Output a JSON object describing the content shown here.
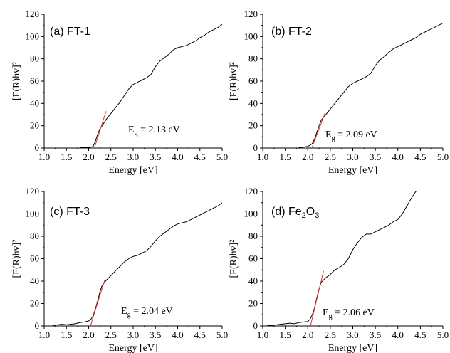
{
  "colors": {
    "data": "#000000",
    "fit": "#e8322b",
    "axis": "#000000"
  },
  "chart_data": [
    {
      "type": "line",
      "title": "(a) FT-1",
      "title_parts": {
        "main": "(a) FT-1",
        "sub": "",
        "tail": ""
      },
      "xlabel": "Energy [eV]",
      "ylabel": "[F(R)hv]²",
      "xlim": [
        1.0,
        5.0
      ],
      "ylim": [
        0,
        120
      ],
      "xticks": [
        "1.0",
        "1.5",
        "2.0",
        "2.5",
        "3.0",
        "3.5",
        "4.0",
        "4.5",
        "5.0"
      ],
      "yticks": [
        "0",
        "20",
        "40",
        "60",
        "80",
        "100",
        "120"
      ],
      "annotation": {
        "main": "E",
        "sub": "g",
        "rest": " = 2.13 eV"
      },
      "series": [
        {
          "x": [
            1.8,
            1.9,
            2.0,
            2.05,
            2.1,
            2.15,
            2.2,
            2.25,
            2.3,
            2.4,
            2.5,
            2.6,
            2.7,
            2.8,
            2.9,
            3.0,
            3.1,
            3.2,
            3.3,
            3.4,
            3.5,
            3.6,
            3.7,
            3.8,
            3.9,
            4.0,
            4.1,
            4.2,
            4.3,
            4.4,
            4.5,
            4.6,
            4.7,
            4.8,
            4.9,
            5.0
          ],
          "y": [
            0.5,
            0.5,
            0.6,
            0.8,
            1.5,
            6,
            12,
            17,
            20,
            26,
            31,
            36,
            41,
            47,
            53,
            57,
            59,
            61,
            63,
            66,
            73,
            78,
            81,
            84,
            88,
            90,
            91,
            92,
            94,
            96,
            99,
            101,
            104,
            106,
            108,
            111
          ]
        },
        {
          "x": [
            2.13,
            2.39
          ],
          "y": [
            0,
            33
          ]
        }
      ]
    },
    {
      "type": "line",
      "title": "(b) FT-2",
      "title_parts": {
        "main": "(b) FT-2",
        "sub": "",
        "tail": ""
      },
      "xlabel": "Energy [eV]",
      "ylabel": "[F(R)hv]²",
      "xlim": [
        1.0,
        5.0
      ],
      "ylim": [
        0,
        120
      ],
      "xticks": [
        "1.0",
        "1.5",
        "2.0",
        "2.5",
        "3.0",
        "3.5",
        "4.0",
        "4.5",
        "5.0"
      ],
      "yticks": [
        "0",
        "20",
        "40",
        "60",
        "80",
        "100",
        "120"
      ],
      "annotation": {
        "main": "E",
        "sub": "g",
        "rest": " = 2.09 eV"
      },
      "series": [
        {
          "x": [
            1.8,
            1.9,
            2.0,
            2.05,
            2.1,
            2.15,
            2.2,
            2.25,
            2.3,
            2.4,
            2.5,
            2.6,
            2.7,
            2.8,
            2.9,
            3.0,
            3.1,
            3.2,
            3.3,
            3.4,
            3.5,
            3.6,
            3.7,
            3.8,
            3.9,
            4.0,
            4.1,
            4.2,
            4.3,
            4.4,
            4.5,
            4.6,
            4.7,
            4.8,
            4.9,
            5.0
          ],
          "y": [
            0.5,
            0.8,
            1.5,
            2.5,
            4,
            8,
            14,
            20,
            25,
            30,
            35,
            40,
            45,
            50,
            55,
            58,
            60,
            62,
            64,
            67,
            74,
            79,
            82,
            86,
            89,
            91,
            93,
            95,
            97,
            99,
            102,
            104,
            106,
            108,
            110,
            112
          ]
        },
        {
          "x": [
            2.09,
            2.38
          ],
          "y": [
            0,
            31
          ]
        }
      ]
    },
    {
      "type": "line",
      "title": "(c) FT-3",
      "title_parts": {
        "main": "(c) FT-3",
        "sub": "",
        "tail": ""
      },
      "xlabel": "Energy [eV]",
      "ylabel": "[F(R)hv]²",
      "xlim": [
        1.0,
        5.0
      ],
      "ylim": [
        0,
        120
      ],
      "xticks": [
        "1.0",
        "1.5",
        "2.0",
        "2.5",
        "3.0",
        "3.5",
        "4.0",
        "4.5",
        "5.0"
      ],
      "yticks": [
        "0",
        "20",
        "40",
        "60",
        "80",
        "100",
        "120"
      ],
      "annotation": {
        "main": "E",
        "sub": "g",
        "rest": " = 2.04 eV"
      },
      "series": [
        {
          "x": [
            1.2,
            1.3,
            1.4,
            1.5,
            1.6,
            1.7,
            1.8,
            1.9,
            2.0,
            2.05,
            2.1,
            2.15,
            2.2,
            2.25,
            2.3,
            2.4,
            2.5,
            2.6,
            2.7,
            2.8,
            2.9,
            3.0,
            3.1,
            3.2,
            3.3,
            3.4,
            3.5,
            3.6,
            3.7,
            3.8,
            3.9,
            4.0,
            4.1,
            4.2,
            4.3,
            4.4,
            4.5,
            4.6,
            4.7,
            4.8,
            4.9,
            5.0
          ],
          "y": [
            0.5,
            1,
            1.5,
            1,
            1.5,
            2,
            3,
            3.5,
            4.5,
            6,
            9,
            15,
            22,
            30,
            36,
            41,
            45,
            49,
            53,
            57,
            60,
            62,
            63,
            65,
            67,
            71,
            76,
            80,
            83,
            86,
            89,
            91,
            92,
            93,
            95,
            97,
            99,
            101,
            103,
            105,
            107,
            110
          ]
        },
        {
          "x": [
            2.04,
            2.37
          ],
          "y": [
            0,
            42
          ]
        }
      ]
    },
    {
      "type": "line",
      "title": "(d) Fe2O3",
      "title_parts": {
        "main": "(d) Fe",
        "sub": "2",
        "tail": "O",
        "sub2": "3"
      },
      "xlabel": "Energy [eV]",
      "ylabel": "[F(R)hv]²",
      "xlim": [
        1.0,
        5.0
      ],
      "ylim": [
        0,
        120
      ],
      "xticks": [
        "1.0",
        "1.5",
        "2.0",
        "2.5",
        "3.0",
        "3.5",
        "4.0",
        "4.5",
        "5.0"
      ],
      "yticks": [
        "0",
        "20",
        "40",
        "60",
        "80",
        "100",
        "120"
      ],
      "annotation": {
        "main": "E",
        "sub": "g",
        "rest": " = 2.06 eV"
      },
      "series": [
        {
          "x": [
            1.1,
            1.2,
            1.3,
            1.4,
            1.5,
            1.6,
            1.7,
            1.8,
            1.9,
            2.0,
            2.05,
            2.1,
            2.15,
            2.2,
            2.25,
            2.3,
            2.4,
            2.5,
            2.6,
            2.7,
            2.8,
            2.9,
            3.0,
            3.1,
            3.2,
            3.3,
            3.4,
            3.5,
            3.6,
            3.7,
            3.8,
            3.9,
            4.0,
            4.1,
            4.2,
            4.3,
            4.4,
            4.5
          ],
          "y": [
            0.5,
            0.5,
            1,
            1.5,
            2,
            2.5,
            2,
            3,
            3.5,
            4,
            6,
            10,
            16,
            25,
            33,
            39,
            43,
            46,
            50,
            52,
            55,
            60,
            68,
            74,
            79,
            82,
            82,
            84,
            86,
            88,
            90,
            93,
            95,
            100,
            107,
            114,
            120,
            121
          ]
        },
        {
          "x": [
            2.06,
            2.35
          ],
          "y": [
            0,
            49
          ]
        }
      ]
    }
  ]
}
